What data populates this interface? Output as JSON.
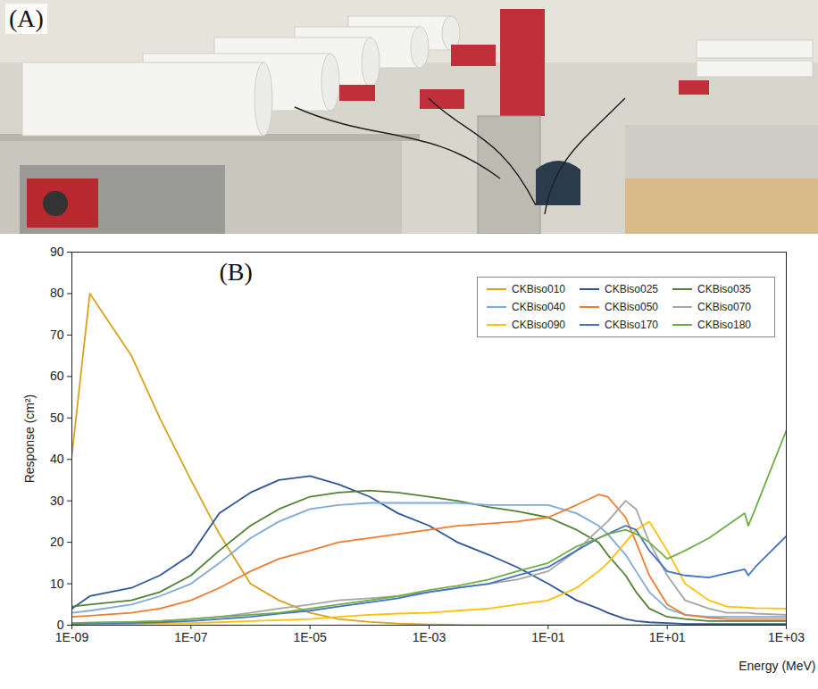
{
  "photo": {
    "label": "(A)"
  },
  "chart_data": {
    "type": "line",
    "annotations": [
      "(B)"
    ],
    "x_label": "Energy (MeV)",
    "y_label": "Response (cm²)",
    "log": "x",
    "grid": false,
    "legend": "top-right",
    "xlim": [
      1e-09,
      1000
    ],
    "ylim": [
      0,
      90
    ],
    "xticks": [
      {
        "value": 1e-09,
        "label": "1E-09"
      },
      {
        "value": 1e-07,
        "label": "1E-07"
      },
      {
        "value": 1e-05,
        "label": "1E-05"
      },
      {
        "value": 0.001,
        "label": "1E-03"
      },
      {
        "value": 0.1,
        "label": "1E-01"
      },
      {
        "value": 10,
        "label": "1E+01"
      },
      {
        "value": 1000,
        "label": "1E+03"
      }
    ],
    "yticks": [
      0,
      10,
      20,
      30,
      40,
      50,
      60,
      70,
      80,
      90
    ],
    "x": [
      1e-09,
      2e-09,
      1e-08,
      3e-08,
      1e-07,
      3e-07,
      1e-06,
      3e-06,
      1e-05,
      3e-05,
      0.0001,
      0.0003,
      0.001,
      0.003,
      0.01,
      0.03,
      0.1,
      0.3,
      0.7,
      1,
      2,
      3,
      5,
      10,
      20,
      50,
      100,
      200,
      230,
      300,
      1000
    ],
    "series": [
      {
        "name": "CKBiso010",
        "color": "#d9a21b",
        "values": [
          41,
          80,
          65,
          50,
          35,
          22,
          10,
          6,
          3,
          1.5,
          0.8,
          0.4,
          0.2,
          0.1,
          0,
          0,
          0,
          0,
          0,
          0,
          0,
          0,
          0,
          0,
          0,
          0,
          0,
          0,
          0,
          0,
          0
        ]
      },
      {
        "name": "CKBiso025",
        "color": "#2f5597",
        "values": [
          4,
          7,
          9,
          12,
          17,
          27,
          32,
          35,
          36,
          34,
          31,
          27,
          24,
          20,
          17,
          14,
          10,
          6,
          4,
          3,
          1.5,
          1,
          0.7,
          0.5,
          0.3,
          0.3,
          0.3,
          0.3,
          0.3,
          0.3,
          0.3
        ]
      },
      {
        "name": "CKBiso035",
        "color": "#548235",
        "values": [
          4.5,
          5,
          6,
          8,
          12,
          18,
          24,
          28,
          31,
          32,
          32.5,
          32,
          31,
          30,
          28.5,
          27.5,
          26,
          23,
          20,
          17,
          12,
          8,
          4,
          2,
          1.5,
          1,
          1,
          1,
          1,
          1,
          1
        ]
      },
      {
        "name": "CKBiso040",
        "color": "#7fa9d6",
        "values": [
          3,
          3.5,
          5,
          7,
          10,
          15,
          21,
          25,
          28,
          29,
          29.5,
          29.5,
          29.5,
          29.5,
          29,
          29,
          29,
          27,
          24,
          22,
          17,
          13,
          8,
          4,
          2.5,
          2,
          2,
          2,
          2,
          2,
          2
        ]
      },
      {
        "name": "CKBiso050",
        "color": "#ed7d31",
        "values": [
          2,
          2.3,
          3,
          4,
          6,
          9,
          13,
          16,
          18,
          20,
          21,
          22,
          23,
          24,
          24.5,
          25,
          26,
          29,
          31.5,
          31,
          26,
          20,
          12,
          5,
          2.5,
          1.8,
          1.5,
          1.5,
          1.5,
          1.5,
          1.5
        ]
      },
      {
        "name": "CKBiso070",
        "color": "#a5a5a5",
        "values": [
          0.5,
          0.6,
          0.8,
          1,
          1.5,
          2,
          3,
          4,
          5,
          6,
          6.5,
          7,
          8,
          9,
          10,
          11,
          13,
          18,
          23,
          25,
          30,
          28,
          20,
          12,
          6,
          4,
          3,
          3,
          3,
          2.8,
          2.5
        ]
      },
      {
        "name": "CKBiso090",
        "color": "#ffc000",
        "values": [
          0.2,
          0.2,
          0.3,
          0.4,
          0.5,
          0.7,
          1,
          1.2,
          1.5,
          2,
          2.5,
          2.8,
          3,
          3.5,
          4,
          5,
          6,
          9,
          13,
          15,
          20,
          23,
          25,
          18,
          10,
          6,
          4.5,
          4.3,
          4.2,
          4.1,
          4
        ]
      },
      {
        "name": "CKBiso170",
        "color": "#4472c4",
        "values": [
          0.3,
          0.4,
          0.5,
          0.7,
          1,
          1.5,
          2,
          2.8,
          3.5,
          4.5,
          5.5,
          6.5,
          8,
          9,
          10,
          12,
          14,
          18,
          21,
          22,
          24,
          23,
          18,
          13,
          12,
          11.5,
          12.5,
          13.5,
          12,
          14,
          21.5
        ]
      },
      {
        "name": "CKBiso180",
        "color": "#70ad47",
        "values": [
          0.5,
          0.6,
          0.8,
          1,
          1.5,
          2,
          2.5,
          3,
          4,
          5,
          6,
          7,
          8.5,
          9.5,
          11,
          13,
          15,
          19,
          21,
          22,
          23,
          22,
          20,
          16,
          18,
          21,
          24,
          27,
          24,
          28,
          47
        ]
      }
    ]
  }
}
